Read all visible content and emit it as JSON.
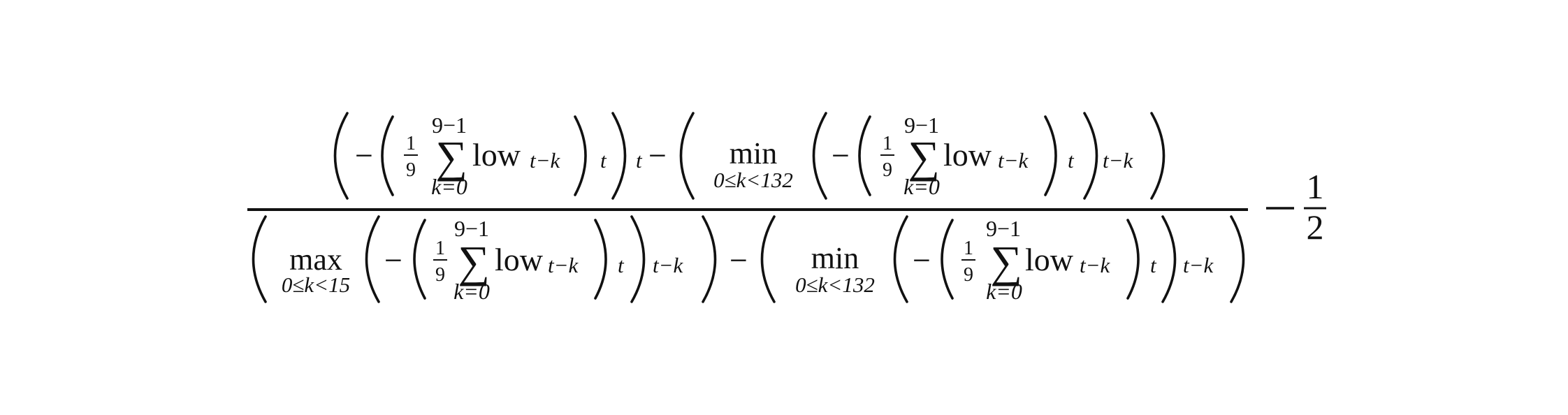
{
  "formula": {
    "sum_upper": "9−1",
    "sum_lower": "k=0",
    "sum_sign": "∑",
    "frac_coef": {
      "num": "1",
      "den": "9"
    },
    "fn_name": "low",
    "sub_tk": "t−k",
    "sub_t": "t",
    "neg": "−",
    "min_op": "min",
    "min_range": "0≤k<132",
    "max_op": "max",
    "max_range": "0≤k<15",
    "const_frac": {
      "num": "1",
      "den": "2"
    }
  }
}
